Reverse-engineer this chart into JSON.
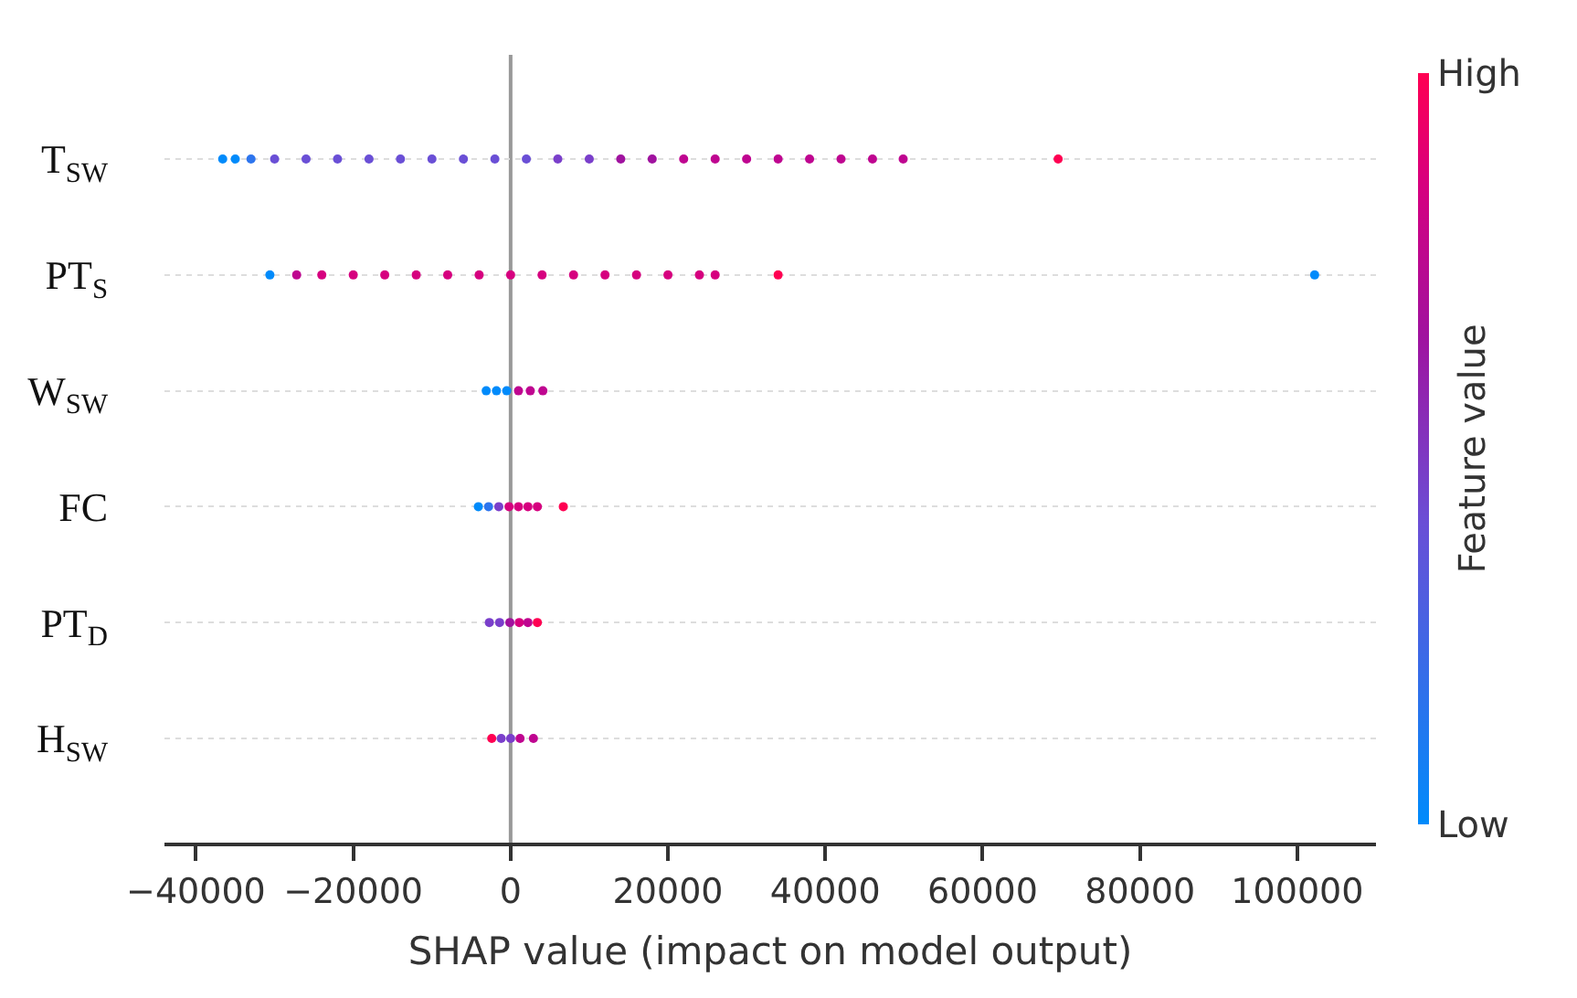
{
  "chart_data": {
    "type": "scatter",
    "orientation": "horizontal",
    "xlabel": "SHAP value (impact on model output)",
    "categories": [
      "T$_{SW}$",
      "PT$_{S}$",
      "W$_{SW}$",
      "FC",
      "PT$_{D}$",
      "H$_{SW}$"
    ],
    "xlim": [
      -44000,
      110000
    ],
    "xticks": [
      {
        "value": -40000,
        "label": "−40000"
      },
      {
        "value": -20000,
        "label": "−20000"
      },
      0,
      20000,
      40000,
      60000,
      80000,
      100000
    ],
    "series": [
      {
        "values": [
          -36600,
          -30600,
          -3100,
          -4100,
          -2700,
          -2400
        ],
        "colors": [
          "#008bfb",
          "#008bfb",
          "#008bfb",
          "#008bfb",
          "#7a3fcb",
          "#ff0052"
        ]
      },
      {
        "values": [
          -35000,
          -27200,
          -1800,
          -2800,
          -1400,
          -1200
        ],
        "colors": [
          "#008bfb",
          "#bf0590",
          "#008bfb",
          "#2d75ee",
          "#7a3fcb",
          "#7a3fcb"
        ]
      },
      {
        "values": [
          -33000,
          -24000,
          -500,
          -1500,
          -100,
          0
        ],
        "colors": [
          "#2d75ee",
          "#d6007f",
          "#008bfb",
          "#7a3fcb",
          "#a0129f",
          "#7a3fcb"
        ]
      },
      {
        "values": [
          -30000,
          -20000,
          1000,
          -200,
          1100,
          1200
        ],
        "colors": [
          "#6a4fd6",
          "#d6007f",
          "#bf0590",
          "#d6007f",
          "#d6007f",
          "#bf0590"
        ]
      },
      {
        "values": [
          -26000,
          -16000,
          2500,
          1000,
          2200,
          2900
        ],
        "colors": [
          "#6a4fd6",
          "#d6007f",
          "#bf0590",
          "#d6007f",
          "#bf0590",
          "#bf0590"
        ]
      },
      {
        "values": [
          -22000,
          -12000,
          4100,
          2200,
          3400,
          null
        ],
        "colors": [
          "#6a4fd6",
          "#d6007f",
          "#bf0590",
          "#d6007f",
          "#ff0052",
          null
        ]
      },
      {
        "values": [
          -18000,
          -8000,
          null,
          3400,
          null,
          null
        ],
        "colors": [
          "#6a4fd6",
          "#d6007f",
          null,
          "#d6007f",
          null,
          null
        ]
      },
      {
        "values": [
          -14000,
          -4000,
          null,
          6700,
          null,
          null
        ],
        "colors": [
          "#6a4fd6",
          "#d6007f",
          null,
          "#ff0052",
          null,
          null
        ]
      },
      {
        "values": [
          -10000,
          0,
          null,
          null,
          null,
          null
        ],
        "colors": [
          "#6a4fd6",
          "#d6007f",
          null,
          null,
          null,
          null
        ]
      },
      {
        "values": [
          -6000,
          4000,
          null,
          null,
          null,
          null
        ],
        "colors": [
          "#6a4fd6",
          "#d6007f",
          null,
          null,
          null,
          null
        ]
      },
      {
        "values": [
          -2000,
          8000,
          null,
          null,
          null,
          null
        ],
        "colors": [
          "#6a4fd6",
          "#d6007f",
          null,
          null,
          null,
          null
        ]
      },
      {
        "values": [
          2000,
          12000,
          null,
          null,
          null,
          null
        ],
        "colors": [
          "#6a4fd6",
          "#d6007f",
          null,
          null,
          null,
          null
        ]
      },
      {
        "values": [
          6000,
          16000,
          null,
          null,
          null,
          null
        ],
        "colors": [
          "#7a3fcb",
          "#d6007f",
          null,
          null,
          null,
          null
        ]
      },
      {
        "values": [
          10000,
          20000,
          null,
          null,
          null,
          null
        ],
        "colors": [
          "#7a3fcb",
          "#d6007f",
          null,
          null,
          null,
          null
        ]
      },
      {
        "values": [
          14000,
          24000,
          null,
          null,
          null,
          null
        ],
        "colors": [
          "#a0129f",
          "#d6007f",
          null,
          null,
          null,
          null
        ]
      },
      {
        "values": [
          18000,
          26000,
          null,
          null,
          null,
          null
        ],
        "colors": [
          "#a0129f",
          "#d6007f",
          null,
          null,
          null,
          null
        ]
      },
      {
        "values": [
          22000,
          34000,
          null,
          null,
          null,
          null
        ],
        "colors": [
          "#bf0590",
          "#ff0052",
          null,
          null,
          null,
          null
        ]
      },
      {
        "values": [
          26000,
          102200,
          null,
          null,
          null,
          null
        ],
        "colors": [
          "#bf0590",
          "#008bfb",
          null,
          null,
          null,
          null
        ]
      },
      {
        "values": [
          30000,
          null,
          null,
          null,
          null,
          null
        ],
        "colors": [
          "#bf0590",
          null,
          null,
          null,
          null,
          null
        ]
      },
      {
        "values": [
          34000,
          null,
          null,
          null,
          null,
          null
        ],
        "colors": [
          "#bf0590",
          null,
          null,
          null,
          null,
          null
        ]
      },
      {
        "values": [
          38000,
          null,
          null,
          null,
          null,
          null
        ],
        "colors": [
          "#bf0590",
          null,
          null,
          null,
          null,
          null
        ]
      },
      {
        "values": [
          42000,
          null,
          null,
          null,
          null,
          null
        ],
        "colors": [
          "#bf0590",
          null,
          null,
          null,
          null,
          null
        ]
      },
      {
        "values": [
          46000,
          null,
          null,
          null,
          null,
          null
        ],
        "colors": [
          "#bf0590",
          null,
          null,
          null,
          null,
          null
        ]
      },
      {
        "values": [
          49900,
          null,
          null,
          null,
          null,
          null
        ],
        "colors": [
          "#bf0590",
          null,
          null,
          null,
          null,
          null
        ]
      },
      {
        "values": [
          69600,
          null,
          null,
          null,
          null,
          null
        ],
        "colors": [
          "#ff0052",
          null,
          null,
          null,
          null,
          null
        ]
      }
    ],
    "clim": [
      0,
      1
    ],
    "cticks": [
      {
        "value": 0,
        "label": "Low"
      },
      {
        "value": 1,
        "label": "High"
      }
    ],
    "clabel": "Feature value",
    "ref_lines": [
      {
        "axis": "x",
        "value": 0,
        "color": "#999999"
      }
    ],
    "grid": "y",
    "marker": "circle"
  }
}
